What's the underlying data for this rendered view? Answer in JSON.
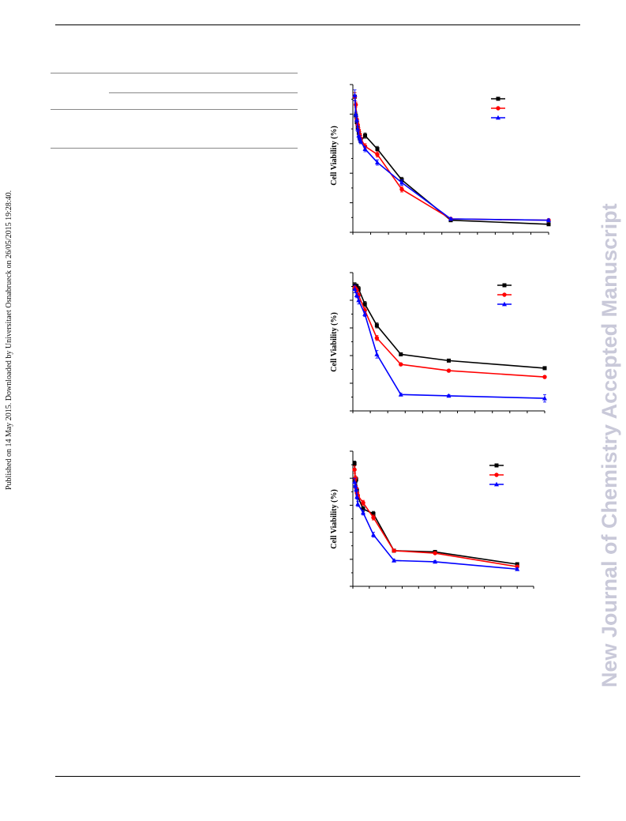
{
  "page": {
    "side_note": "Published on 14 May 2015. Downloaded by Universitaet Osnabrueck on 26/05/2015 19:28:40.",
    "watermark": "New Journal of Chemistry Accepted Manuscript"
  },
  "colors": {
    "black_series": "#000000",
    "red_series": "#ff0000",
    "blue_series": "#0000ff"
  },
  "chart_data": [
    {
      "type": "line",
      "ylabel": "Cell Viability (%)",
      "xlim": [
        0,
        100
      ],
      "ylim": [
        0,
        110
      ],
      "grid": false,
      "legend": "top-right",
      "series": [
        {
          "marker": "square",
          "color": "#000000",
          "x": [
            1,
            1.5,
            2,
            2.5,
            3,
            3.5,
            4,
            6.25,
            12.5,
            25,
            50,
            100
          ],
          "y": [
            101,
            87,
            82,
            78,
            74,
            70,
            68,
            72,
            62,
            39,
            9,
            6
          ],
          "err": [
            3,
            2,
            2,
            2,
            2,
            2,
            2,
            2,
            2,
            2,
            1,
            1
          ]
        },
        {
          "marker": "circle",
          "color": "#ff0000",
          "x": [
            1,
            1.5,
            2,
            2.5,
            3,
            3.5,
            4,
            6.25,
            12.5,
            25,
            50,
            100
          ],
          "y": [
            101,
            95,
            84,
            80,
            76,
            73,
            70,
            64,
            58,
            32,
            10,
            9
          ],
          "err": [
            3,
            2,
            2,
            2,
            2,
            2,
            2,
            2,
            2,
            2,
            1,
            1
          ]
        },
        {
          "marker": "triangle",
          "color": "#0000ff",
          "x": [
            1,
            1.5,
            2,
            2.5,
            3,
            3.5,
            4,
            6.25,
            12.5,
            25,
            50,
            100
          ],
          "y": [
            102,
            88,
            84,
            77,
            72,
            70,
            68,
            62,
            52,
            37,
            10,
            9
          ],
          "err": [
            4,
            2,
            2,
            2,
            2,
            2,
            2,
            2,
            2,
            2,
            1,
            1
          ]
        }
      ]
    },
    {
      "type": "line",
      "ylabel": "Cell Viability (%)",
      "xlim": [
        0,
        100
      ],
      "ylim": [
        0,
        110
      ],
      "grid": false,
      "legend": "top-right",
      "series": [
        {
          "marker": "square",
          "color": "#000000",
          "x": [
            1,
            2,
            3,
            6.25,
            12.5,
            25,
            50,
            100
          ],
          "y": [
            100,
            99,
            97,
            85,
            68,
            45,
            40,
            34
          ],
          "err": [
            2,
            2,
            2,
            2,
            2,
            1,
            1,
            1
          ]
        },
        {
          "marker": "circle",
          "color": "#ff0000",
          "x": [
            1,
            2,
            3,
            6.25,
            12.5,
            25,
            50,
            100
          ],
          "y": [
            98,
            96,
            92,
            80,
            58,
            37,
            32,
            27
          ],
          "err": [
            2,
            2,
            2,
            2,
            2,
            1,
            1,
            1
          ]
        },
        {
          "marker": "triangle",
          "color": "#0000ff",
          "x": [
            1,
            2,
            3,
            6.25,
            12.5,
            25,
            50,
            100
          ],
          "y": [
            97,
            92,
            88,
            77,
            45,
            13,
            12,
            10
          ],
          "err": [
            3,
            2,
            3,
            2,
            3,
            1,
            1,
            3
          ]
        }
      ]
    },
    {
      "type": "line",
      "ylabel": "Cell Viability (%)",
      "xlim": [
        0,
        110
      ],
      "ylim": [
        0,
        110
      ],
      "grid": false,
      "legend": "top-right",
      "series": [
        {
          "marker": "square",
          "color": "#000000",
          "x": [
            1,
            1.5,
            2,
            2.5,
            3,
            6.25,
            12.5,
            25,
            50,
            100
          ],
          "y": [
            100,
            86,
            87,
            78,
            73,
            63,
            59,
            29,
            28,
            18
          ],
          "err": [
            2,
            2,
            2,
            2,
            2,
            2,
            2,
            1,
            1,
            1
          ]
        },
        {
          "marker": "circle",
          "color": "#ff0000",
          "x": [
            1,
            1.5,
            2,
            2.5,
            3,
            6.25,
            12.5,
            25,
            50,
            100
          ],
          "y": [
            95,
            88,
            80,
            76,
            74,
            68,
            56,
            29,
            27,
            16
          ],
          "err": [
            3,
            2,
            2,
            2,
            2,
            2,
            2,
            1,
            1,
            1
          ]
        },
        {
          "marker": "triangle",
          "color": "#0000ff",
          "x": [
            1,
            1.5,
            2,
            2.5,
            3,
            6.25,
            12.5,
            25,
            50,
            100
          ],
          "y": [
            85,
            82,
            79,
            73,
            67,
            60,
            42,
            21,
            20,
            14
          ],
          "err": [
            3,
            2,
            2,
            2,
            2,
            2,
            2,
            1,
            1,
            1
          ]
        }
      ]
    }
  ]
}
